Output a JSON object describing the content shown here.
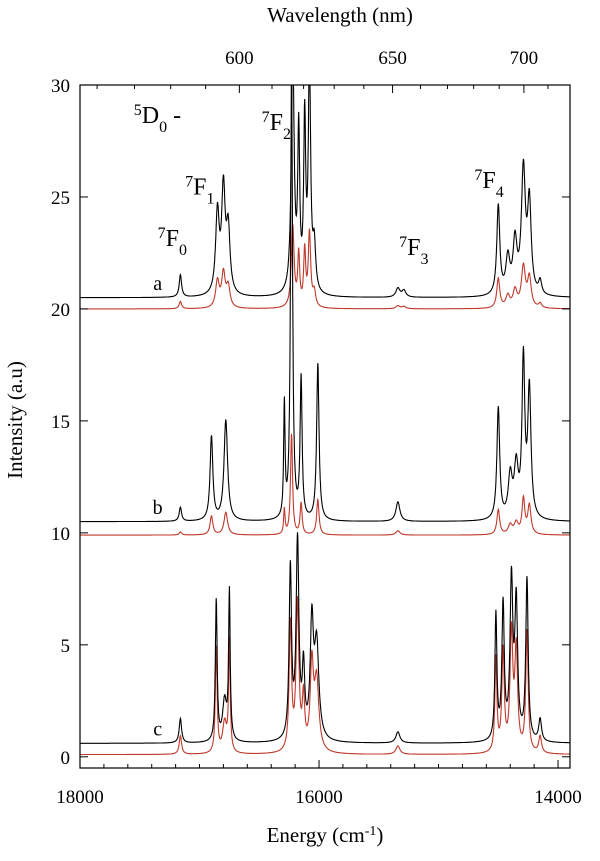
{
  "chart_data": {
    "type": "line",
    "title": "",
    "xlabel": "Energy (cm-1)",
    "xlabel_parts": {
      "base": "Energy (cm",
      "sup": "-1",
      "close": ")"
    },
    "ylabel": "Intensity (a.u)",
    "x2label": "Wavelength (nm)",
    "xlim": [
      18000,
      13900
    ],
    "ylim": [
      -0.5,
      30
    ],
    "xticks": [
      18000,
      16000,
      14000
    ],
    "yticks": [
      0,
      5,
      10,
      15,
      20,
      25,
      30
    ],
    "x2ticks": [
      600,
      650,
      700
    ],
    "grid": false,
    "colors": {
      "black_series": "#000000",
      "red_series": "#c0392b",
      "axis": "#000000"
    },
    "groups": [
      {
        "label": "a",
        "baseline_black": 20.5,
        "baseline_red": 20.0,
        "black_scale": 1.0,
        "red_scale": 0.33
      },
      {
        "label": "b",
        "baseline_black": 10.5,
        "baseline_red": 9.9,
        "black_scale": 1.25,
        "red_scale": 0.28
      },
      {
        "label": "c",
        "baseline_black": 0.6,
        "baseline_red": 0.1,
        "black_scale": 1.0,
        "red_scale": 0.75
      }
    ],
    "series_profiles": {
      "a": {
        "peaks": [
          {
            "x": 17160,
            "h": 1.0,
            "w": 12
          },
          {
            "x": 16850,
            "h": 3.6,
            "w": 18
          },
          {
            "x": 16800,
            "h": 4.6,
            "w": 18
          },
          {
            "x": 16760,
            "h": 2.8,
            "w": 18
          },
          {
            "x": 16220,
            "h": 11.0,
            "w": 14
          },
          {
            "x": 16170,
            "h": 7.0,
            "w": 10
          },
          {
            "x": 16120,
            "h": 7.5,
            "w": 10
          },
          {
            "x": 16080,
            "h": 10.0,
            "w": 12
          },
          {
            "x": 16040,
            "h": 2.0,
            "w": 14
          },
          {
            "x": 15340,
            "h": 0.4,
            "w": 20
          },
          {
            "x": 15290,
            "h": 0.3,
            "w": 20
          },
          {
            "x": 14500,
            "h": 4.0,
            "w": 15
          },
          {
            "x": 14420,
            "h": 1.6,
            "w": 20
          },
          {
            "x": 14360,
            "h": 2.3,
            "w": 20
          },
          {
            "x": 14290,
            "h": 5.5,
            "w": 20
          },
          {
            "x": 14240,
            "h": 4.0,
            "w": 18
          },
          {
            "x": 14150,
            "h": 0.6,
            "w": 15
          }
        ]
      },
      "b": {
        "peaks": [
          {
            "x": 17160,
            "h": 0.5,
            "w": 12
          },
          {
            "x": 16900,
            "h": 3.0,
            "w": 14
          },
          {
            "x": 16780,
            "h": 3.6,
            "w": 18
          },
          {
            "x": 16290,
            "h": 4.0,
            "w": 7
          },
          {
            "x": 16230,
            "h": 16.0,
            "w": 10
          },
          {
            "x": 16150,
            "h": 5.0,
            "w": 10
          },
          {
            "x": 16010,
            "h": 5.6,
            "w": 12
          },
          {
            "x": 15340,
            "h": 0.7,
            "w": 20
          },
          {
            "x": 14500,
            "h": 4.0,
            "w": 14
          },
          {
            "x": 14400,
            "h": 1.5,
            "w": 20
          },
          {
            "x": 14350,
            "h": 1.8,
            "w": 20
          },
          {
            "x": 14290,
            "h": 5.6,
            "w": 14
          },
          {
            "x": 14240,
            "h": 4.6,
            "w": 16
          }
        ]
      },
      "c": {
        "peaks": [
          {
            "x": 17160,
            "h": 1.1,
            "w": 12
          },
          {
            "x": 16860,
            "h": 6.3,
            "w": 9
          },
          {
            "x": 16790,
            "h": 1.8,
            "w": 20
          },
          {
            "x": 16750,
            "h": 6.6,
            "w": 8
          },
          {
            "x": 16240,
            "h": 7.6,
            "w": 12
          },
          {
            "x": 16180,
            "h": 8.8,
            "w": 14
          },
          {
            "x": 16130,
            "h": 3.0,
            "w": 12
          },
          {
            "x": 16060,
            "h": 5.0,
            "w": 16
          },
          {
            "x": 16020,
            "h": 4.2,
            "w": 22
          },
          {
            "x": 15340,
            "h": 0.5,
            "w": 20
          },
          {
            "x": 14520,
            "h": 5.6,
            "w": 10
          },
          {
            "x": 14460,
            "h": 6.0,
            "w": 12
          },
          {
            "x": 14390,
            "h": 7.0,
            "w": 14
          },
          {
            "x": 14350,
            "h": 6.0,
            "w": 14
          },
          {
            "x": 14260,
            "h": 7.2,
            "w": 12
          },
          {
            "x": 14150,
            "h": 1.0,
            "w": 14
          }
        ]
      }
    },
    "annotations": [
      {
        "base": "D",
        "pre": "5",
        "sub": "0",
        "tail": " -",
        "x": 17550,
        "y": 28.3
      },
      {
        "base": "F",
        "pre": "7",
        "sub": "0",
        "tail": "",
        "x": 17350,
        "y": 22.8
      },
      {
        "base": "F",
        "pre": "7",
        "sub": "1",
        "tail": "",
        "x": 17120,
        "y": 25.1
      },
      {
        "base": "F",
        "pre": "7",
        "sub": "2",
        "tail": "",
        "x": 16480,
        "y": 28.0
      },
      {
        "base": "F",
        "pre": "7",
        "sub": "3",
        "tail": "",
        "x": 15330,
        "y": 22.4
      },
      {
        "base": "F",
        "pre": "7",
        "sub": "4",
        "tail": "",
        "x": 14700,
        "y": 25.4
      }
    ]
  }
}
